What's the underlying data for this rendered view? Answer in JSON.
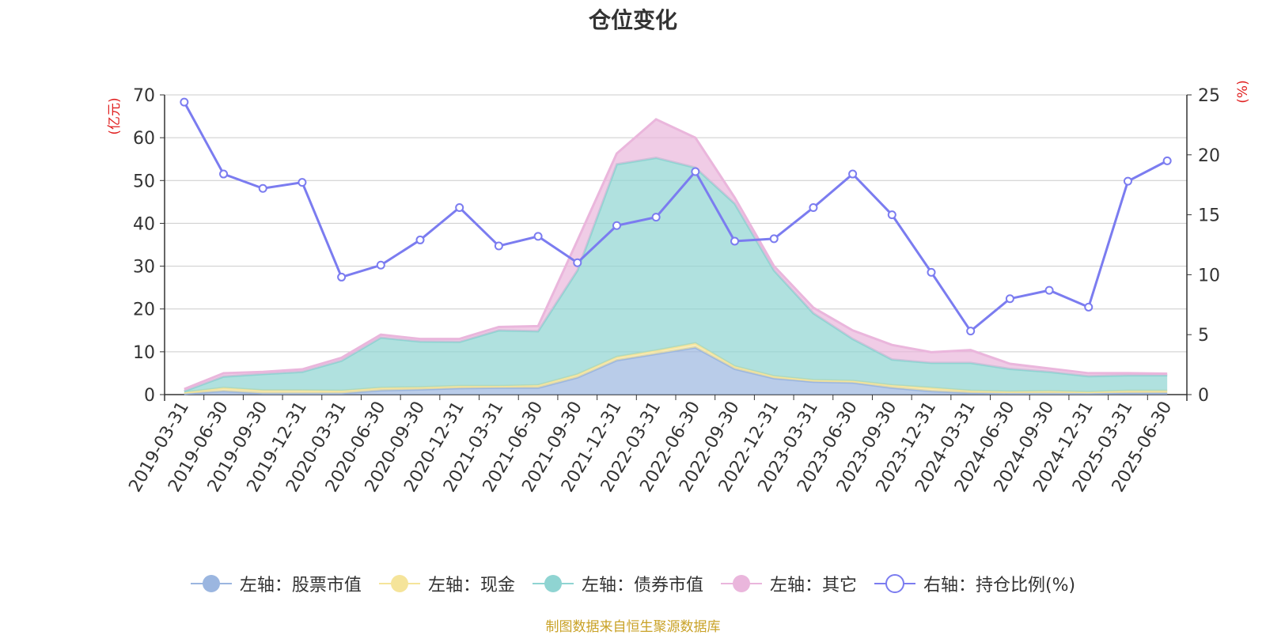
{
  "chart_data": {
    "type": "area",
    "title": "仓位变化",
    "left_axis_label": "(亿元)",
    "right_axis_label": "(%)",
    "left_ylim": [
      0,
      70
    ],
    "left_ticks": [
      0,
      10,
      20,
      30,
      40,
      50,
      60,
      70
    ],
    "right_ylim": [
      0,
      25
    ],
    "right_ticks": [
      0,
      5,
      10,
      15,
      20,
      25
    ],
    "grid": true,
    "legend_position": "bottom",
    "stacked": true,
    "categories": [
      "2019-03-31",
      "2019-06-30",
      "2019-09-30",
      "2019-12-31",
      "2020-03-31",
      "2020-06-30",
      "2020-09-30",
      "2020-12-31",
      "2021-03-31",
      "2021-06-30",
      "2021-09-30",
      "2021-12-31",
      "2022-03-31",
      "2022-06-30",
      "2022-09-30",
      "2022-12-31",
      "2023-03-31",
      "2023-06-30",
      "2023-09-30",
      "2023-12-31",
      "2024-03-31",
      "2024-06-30",
      "2024-09-30",
      "2024-12-31",
      "2025-03-31",
      "2025-06-30"
    ],
    "series": [
      {
        "name": "左轴：股票市值",
        "axis": "left",
        "kind": "area",
        "color": "#9bb6e0",
        "values": [
          0.2,
          0.8,
          0.3,
          0.3,
          0.3,
          1.0,
          1.2,
          1.5,
          1.6,
          1.6,
          4.0,
          8.0,
          9.5,
          11.0,
          6.0,
          3.8,
          3.0,
          2.8,
          1.6,
          0.8,
          0.4,
          0.3,
          0.3,
          0.3,
          0.4,
          0.4
        ]
      },
      {
        "name": "左轴：现金",
        "axis": "left",
        "kind": "area",
        "color": "#f5e49a",
        "values": [
          0.3,
          0.8,
          0.7,
          0.7,
          0.6,
          0.6,
          0.5,
          0.5,
          0.4,
          0.6,
          0.7,
          0.8,
          0.8,
          1.0,
          0.6,
          0.5,
          0.4,
          0.4,
          0.6,
          0.8,
          0.5,
          0.4,
          0.5,
          0.3,
          0.5,
          0.5
        ]
      },
      {
        "name": "左轴：债券市值",
        "axis": "left",
        "kind": "area",
        "color": "#8fd4d2",
        "values": [
          0.3,
          2.6,
          3.8,
          4.3,
          7.0,
          11.7,
          10.7,
          10.3,
          13.0,
          12.6,
          24.3,
          45.0,
          45.0,
          41.0,
          38.0,
          24.7,
          15.6,
          9.8,
          6.0,
          5.8,
          6.5,
          5.3,
          4.5,
          3.7,
          3.6,
          3.6
        ]
      },
      {
        "name": "左轴：其它",
        "axis": "left",
        "kind": "area",
        "color": "#eab6dc",
        "values": [
          0.5,
          0.8,
          0.5,
          0.6,
          0.7,
          0.7,
          0.6,
          0.7,
          0.8,
          1.2,
          7.0,
          2.5,
          9.0,
          7.0,
          1.4,
          1.0,
          1.3,
          2.0,
          3.4,
          2.5,
          3.0,
          1.2,
          0.8,
          0.7,
          0.5,
          0.4
        ]
      },
      {
        "name": "右轴：持仓比例(%)",
        "axis": "right",
        "kind": "line",
        "color": "#7b7cf0",
        "values": [
          24.4,
          18.4,
          17.2,
          17.7,
          9.8,
          10.8,
          12.9,
          15.6,
          12.4,
          13.2,
          11.0,
          14.1,
          14.8,
          18.6,
          12.8,
          13.0,
          15.6,
          18.4,
          15.0,
          10.2,
          5.3,
          8.0,
          8.7,
          7.3,
          17.8,
          19.5
        ]
      }
    ],
    "source_note": "制图数据来自恒生聚源数据库"
  }
}
